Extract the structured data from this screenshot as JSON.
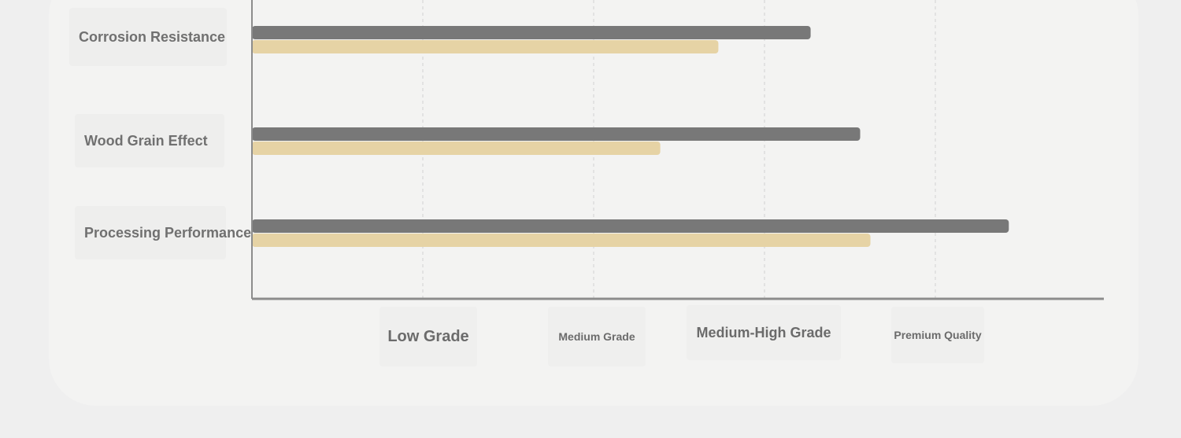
{
  "chart_data": {
    "type": "bar",
    "orientation": "horizontal",
    "categories": [
      "Corrosion Resistance",
      "Wood Grain Effect",
      "Processing Performance"
    ],
    "series": [
      {
        "values": [
          3.27,
          3.56,
          4.43
        ],
        "color": "#787878"
      },
      {
        "values": [
          2.73,
          2.39,
          3.62
        ],
        "color": "#e6d3a5"
      }
    ],
    "x_ticks": [
      {
        "value": 1,
        "label": "Low Grade"
      },
      {
        "value": 2,
        "label": "Medium Grade"
      },
      {
        "value": 3,
        "label": "Medium-High Grade"
      },
      {
        "value": 4,
        "label": "Premium Quality"
      }
    ],
    "xlim": [
      0,
      5
    ],
    "grid": "vertical-dashed",
    "legend": "none"
  }
}
